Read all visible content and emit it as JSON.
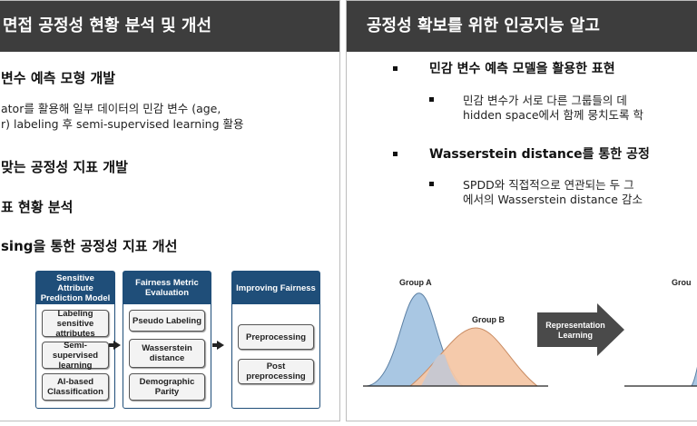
{
  "left_panel": {
    "title": "면접 공정성 현황 분석 및 개선",
    "heading_1": "변수 예측 모형 개발",
    "body_1": "ator를 활용해 일부 데이터의 민감 변수 (age,",
    "body_2": "r) labeling 후 semi-supervised learning 활용",
    "heading_2": "맞는 공정성 지표 개발",
    "heading_3": "표 현황 분석",
    "heading_4": "sing을 통한 공정성 지표 개선",
    "diagram": {
      "group_1": {
        "title": "Sensitive Attribute Prediction Model",
        "items": [
          "Labeling sensitive attributes",
          "Semi-supervised learning",
          "AI-based Classification"
        ]
      },
      "group_2": {
        "title": "Fairness Metric Evaluation",
        "items": [
          "Pseudo Labeling",
          "Wasserstein distance",
          "Demographic Parity"
        ]
      },
      "group_3": {
        "title": "Improving Fairness",
        "items": [
          "Preprocessing",
          "Post preprocessing"
        ]
      }
    }
  },
  "right_panel": {
    "title": "공정성 확보를 위한 인공지능 알고",
    "bullet_1": "민감 변수 예측 모델을 활용한 표현",
    "sub_1_line_1": "민감 변수가 서로 다른 그룹들의 데",
    "sub_1_line_2": "hidden space에서 함께 뭉치도록 학",
    "bullet_2": "Wasserstein distance를 통한 공정",
    "sub_2_line_1": "SPDD와 직접적으로 연관되는 두 그",
    "sub_2_line_2": "에서의 Wasserstein distance 감소",
    "figure": {
      "group_a": "Group A",
      "group_b": "Group B",
      "arrow_label": "Representation Learning",
      "group_right": "Grou"
    }
  },
  "colors": {
    "title_bar": "#3d3d3d",
    "diagram_header": "#1f4e79",
    "curve_a": "#a9c7e3",
    "curve_b": "#f4c7a6",
    "overlap": "#c8c8d0",
    "arrow": "#4a4a4a"
  }
}
